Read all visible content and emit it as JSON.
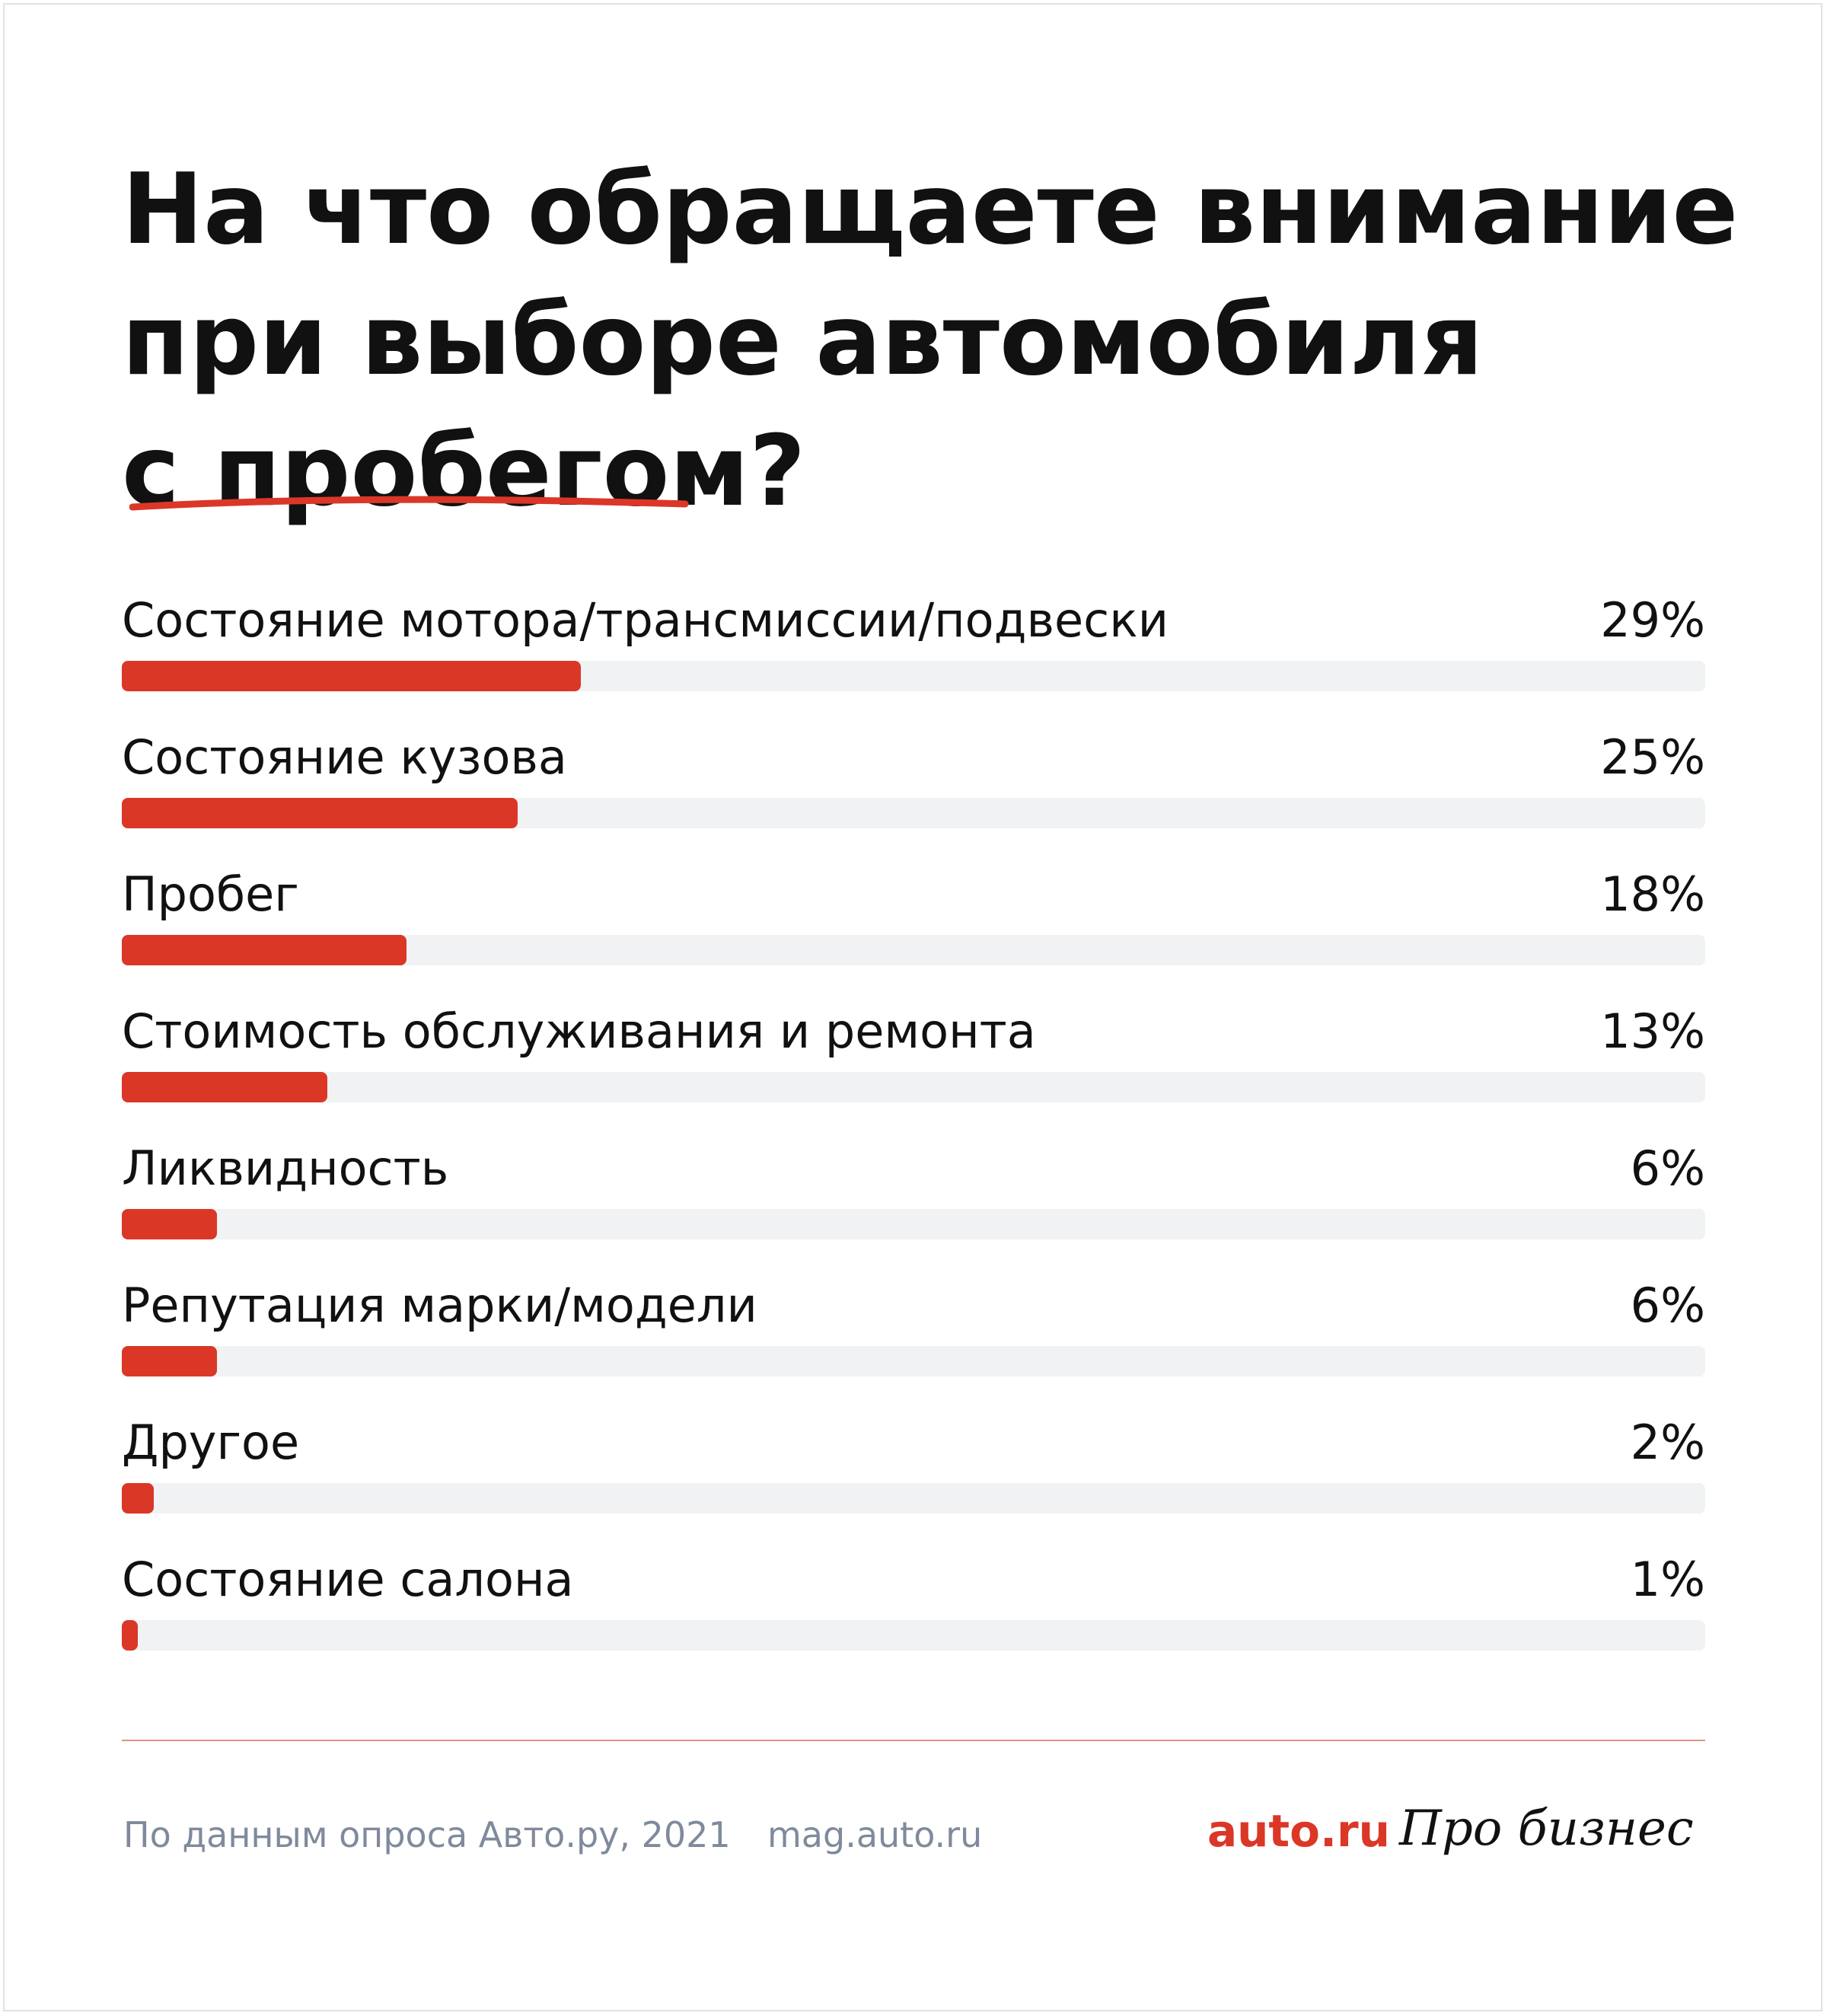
{
  "title": {
    "line1": "На что обращаете внимание",
    "line2": "при выборе автомобиля",
    "line3": "с пробегом?"
  },
  "colors": {
    "accent": "#db3727",
    "track": "#f1f2f4",
    "footer_text": "#7f8a9c",
    "divider": "#e29189"
  },
  "chart_data": {
    "type": "bar",
    "orientation": "horizontal",
    "title": "На что обращаете внимание при выборе автомобиля с пробегом?",
    "categories": [
      "Состояние мотора/трансмиссии/подвески",
      "Состояние кузова",
      "Пробег",
      "Стоимость обслуживания и ремонта",
      "Ликвидность",
      "Репутация марки/модели",
      "Другое",
      "Состояние салона"
    ],
    "values": [
      29,
      25,
      18,
      13,
      6,
      6,
      2,
      1
    ],
    "value_labels": [
      "29%",
      "25%",
      "18%",
      "13%",
      "6%",
      "6%",
      "2%",
      "1%"
    ],
    "xlim": [
      0,
      100
    ],
    "unit": "%",
    "grid": false,
    "legend": "none"
  },
  "footer": {
    "source": "По данным опроса Авто.ру, 2021",
    "site": "mag.auto.ru",
    "brand_auto": "auto.ru",
    "brand_probiz": "Про бизнес"
  }
}
